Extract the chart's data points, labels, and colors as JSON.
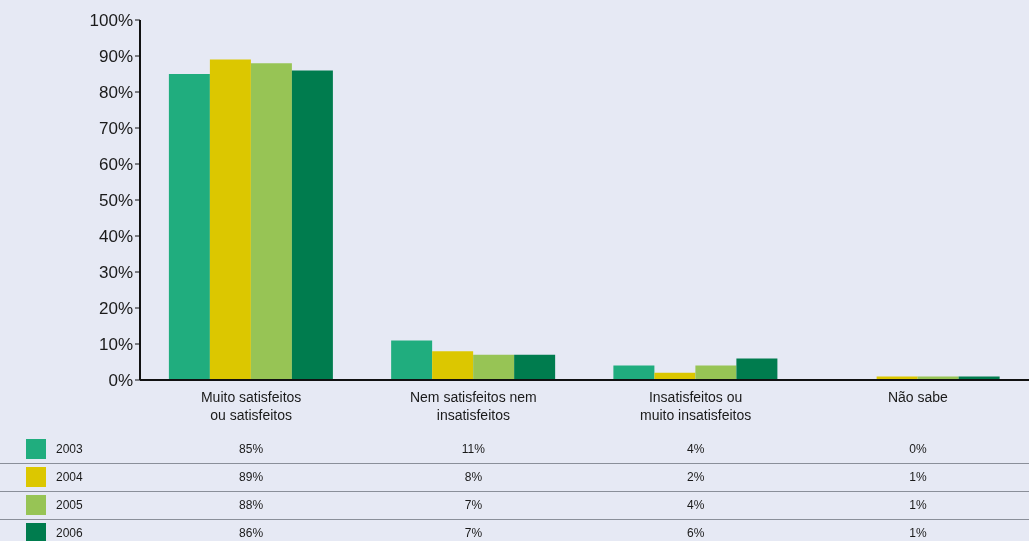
{
  "chart_data": {
    "type": "bar",
    "categories": [
      "Muito satisfeitos ou satisfeitos",
      "Nem satisfeitos nem insatisfeitos",
      "Insatisfeitos ou muito insatisfeitos",
      "Não sabe"
    ],
    "series": [
      {
        "name": "2003",
        "color": "#20ad7e",
        "values": [
          85,
          11,
          4,
          0
        ],
        "value_labels": [
          "85%",
          "11%",
          "4%",
          "0%"
        ]
      },
      {
        "name": "2004",
        "color": "#dcc700",
        "values": [
          89,
          8,
          2,
          1
        ],
        "value_labels": [
          "89%",
          "8%",
          "2%",
          "1%"
        ]
      },
      {
        "name": "2005",
        "color": "#97c455",
        "values": [
          88,
          7,
          4,
          1
        ],
        "value_labels": [
          "88%",
          "7%",
          "4%",
          "1%"
        ]
      },
      {
        "name": "2006",
        "color": "#007c4e",
        "values": [
          86,
          7,
          6,
          1
        ],
        "value_labels": [
          "86%",
          "7%",
          "6%",
          "1%"
        ]
      }
    ],
    "ylim": [
      0,
      100
    ],
    "yticks": [
      {
        "value": 0,
        "label": "0%"
      },
      {
        "value": 10,
        "label": "10%"
      },
      {
        "value": 20,
        "label": "20%"
      },
      {
        "value": 30,
        "label": "30%"
      },
      {
        "value": 40,
        "label": "40%"
      },
      {
        "value": 50,
        "label": "50%"
      },
      {
        "value": 60,
        "label": "60%"
      },
      {
        "value": 70,
        "label": "70%"
      },
      {
        "value": 80,
        "label": "80%"
      },
      {
        "value": 90,
        "label": "90%"
      },
      {
        "value": 100,
        "label": "100%"
      }
    ],
    "grid": false,
    "legend": "bottom"
  }
}
